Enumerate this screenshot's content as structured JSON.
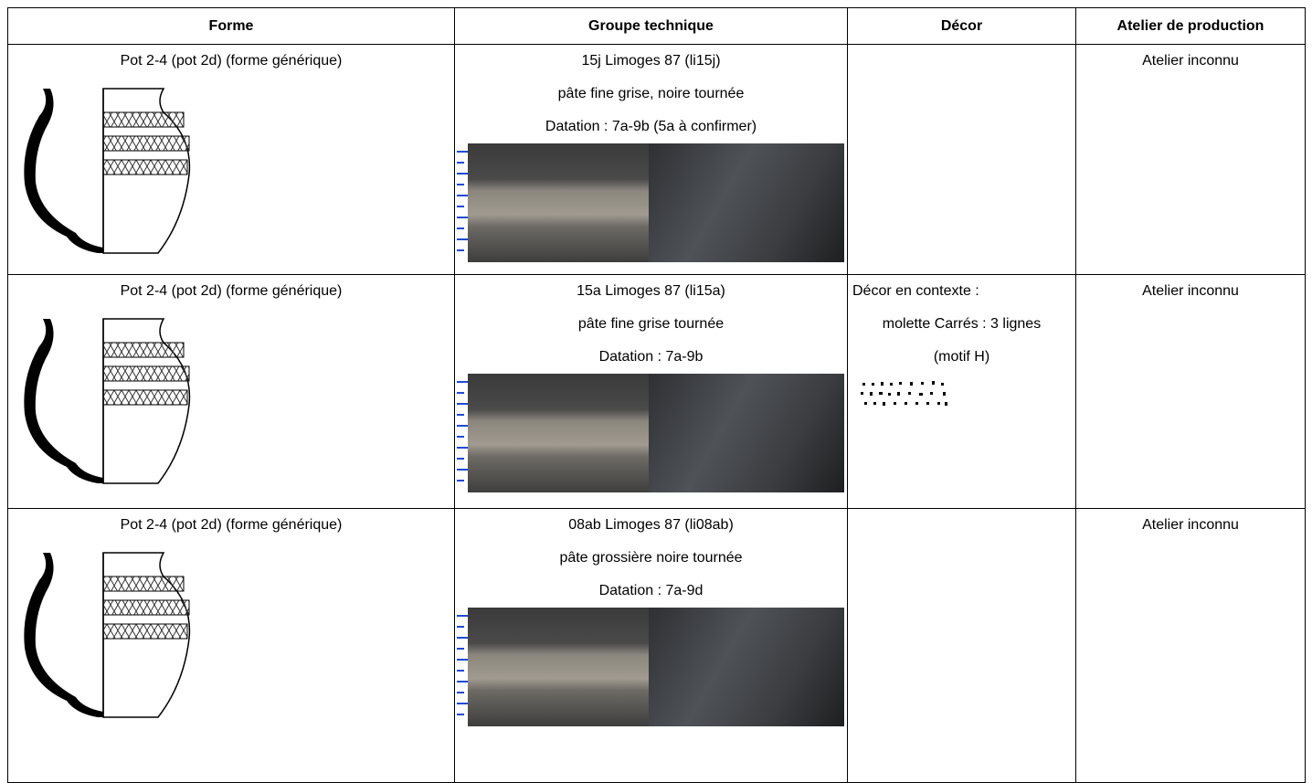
{
  "table": {
    "header": [
      "Forme",
      "Groupe technique",
      "Décor",
      "Atelier de production"
    ],
    "rows": [
      {
        "forme": "Pot 2-4 (pot 2d) (forme  générique)",
        "groupe": [
          "15j Limoges 87 (li15j)",
          "pâte fine grise, noire tournée",
          "Datation : 7a-9b (5a à confirmer)"
        ],
        "atelier": "Atelier inconnu"
      },
      {
        "forme": "Pot 2-4 (pot 2d) (forme  générique)",
        "groupe": [
          "15a Limoges 87 (li15a)",
          "pâte fine grise tournée",
          "Datation : 7a-9b"
        ],
        "decor": [
          "Décor en contexte :",
          "molette Carrés : 3 lignes",
          "(motif H)"
        ],
        "atelier": "Atelier inconnu"
      },
      {
        "forme": "Pot 2-4 (pot 2d) (forme  générique)",
        "groupe": [
          "08ab Limoges 87 (li08ab)",
          "pâte grossière noire tournée",
          "Datation : 7a-9d"
        ],
        "atelier": "Atelier inconnu"
      }
    ]
  }
}
